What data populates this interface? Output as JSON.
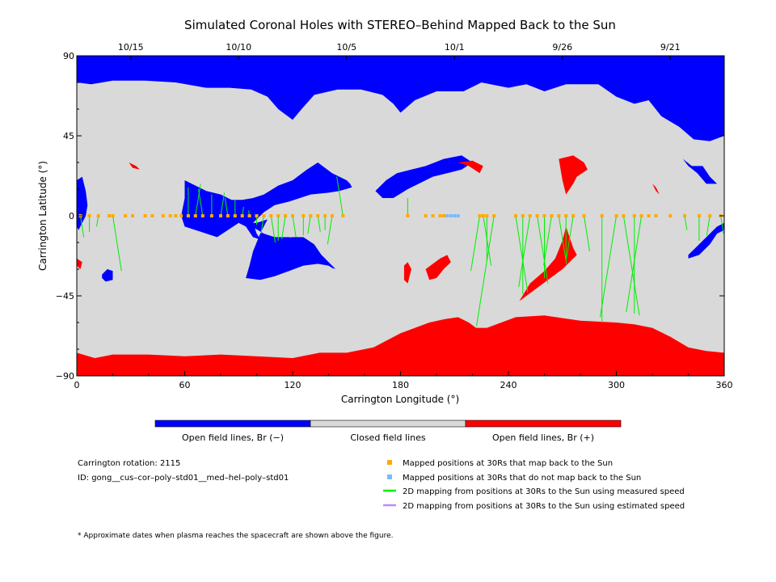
{
  "chart_data": {
    "type": "map",
    "title": "Simulated Coronal Holes with STEREO–Behind Mapped Back to the Sun",
    "xlabel": "Carrington Longitude (°)",
    "ylabel": "Carrington Latitude (°)",
    "xlim": [
      0,
      360
    ],
    "ylim": [
      -90,
      90
    ],
    "x_ticks": [
      "0",
      "60",
      "120",
      "180",
      "240",
      "300",
      "360"
    ],
    "y_ticks": [
      "90",
      "45",
      "0",
      "−45",
      "−90"
    ],
    "top_axis": {
      "dates": [
        "10/15",
        "10/10",
        "10/5",
        "10/1",
        "9/26",
        "9/21"
      ],
      "date_longitudes": [
        30,
        90,
        150,
        210,
        270,
        330
      ]
    },
    "colorbar": {
      "labels": [
        "Open field lines, Br (−)",
        "Closed field lines",
        "Open field lines, Br (+)"
      ],
      "colors": [
        "#0000ff",
        "#d9d9d9",
        "#ff0000"
      ]
    },
    "mapped_points_color": "#ffaa00",
    "unmapped_points_color": "#77bbff",
    "measured_line_color": "#00ee00",
    "estimated_line_color": "#bb88ff",
    "mapped_longitudes": [
      2,
      7,
      12,
      18,
      20,
      27,
      31,
      38,
      42,
      48,
      52,
      55,
      58,
      62,
      66,
      70,
      75,
      80,
      84,
      88,
      92,
      96,
      100,
      104,
      108,
      112,
      116,
      120,
      126,
      130,
      134,
      138,
      142,
      148,
      184,
      194,
      198,
      202,
      204,
      224,
      226,
      228,
      232,
      244,
      248,
      252,
      256,
      260,
      264,
      268,
      272,
      276,
      282,
      292,
      300,
      304,
      310,
      314,
      318,
      322,
      330,
      338,
      346,
      352,
      358
    ],
    "unmapped_longitudes": [
      206,
      208,
      210,
      212
    ],
    "connections": [
      [
        2,
        0,
        -12
      ],
      [
        7,
        0,
        -9
      ],
      [
        12,
        0,
        -6
      ],
      [
        20,
        0,
        -31
      ],
      [
        62,
        0,
        16
      ],
      [
        66,
        0,
        18
      ],
      [
        70,
        0,
        15
      ],
      [
        75,
        0,
        12
      ],
      [
        80,
        0,
        13
      ],
      [
        84,
        0,
        10
      ],
      [
        88,
        0,
        9
      ],
      [
        92,
        0,
        5
      ],
      [
        96,
        0,
        3
      ],
      [
        100,
        0,
        -5
      ],
      [
        104,
        0,
        -10
      ],
      [
        108,
        0,
        -15
      ],
      [
        112,
        0,
        -14
      ],
      [
        116,
        0,
        -13
      ],
      [
        120,
        0,
        -12
      ],
      [
        126,
        0,
        -11
      ],
      [
        130,
        0,
        -10
      ],
      [
        134,
        0,
        -9
      ],
      [
        138,
        0,
        -8
      ],
      [
        142,
        0,
        -16
      ],
      [
        148,
        0,
        22
      ],
      [
        184,
        0,
        10
      ],
      [
        224,
        0,
        -31
      ],
      [
        226,
        0,
        -28
      ],
      [
        228,
        0,
        -25
      ],
      [
        232,
        0,
        -62
      ],
      [
        244,
        0,
        -43
      ],
      [
        248,
        0,
        -44
      ],
      [
        252,
        0,
        -40
      ],
      [
        256,
        0,
        -38
      ],
      [
        260,
        0,
        -35
      ],
      [
        264,
        0,
        -28
      ],
      [
        268,
        0,
        -27
      ],
      [
        272,
        0,
        -25
      ],
      [
        276,
        0,
        -24
      ],
      [
        282,
        0,
        -20
      ],
      [
        292,
        0,
        -60
      ],
      [
        300,
        0,
        -57
      ],
      [
        304,
        0,
        -56
      ],
      [
        310,
        0,
        -55
      ],
      [
        314,
        0,
        -54
      ],
      [
        338,
        0,
        -8
      ],
      [
        346,
        0,
        -14
      ],
      [
        352,
        0,
        -11
      ],
      [
        358,
        0,
        -10
      ]
    ],
    "coronal_holes": [
      {
        "polarity": "negative",
        "lonlat": [
          [
            0,
            90
          ],
          [
            360,
            90
          ],
          [
            360,
            45
          ],
          [
            352,
            42
          ],
          [
            343,
            43
          ],
          [
            335,
            50
          ],
          [
            325,
            56
          ],
          [
            318,
            65
          ],
          [
            310,
            63
          ],
          [
            300,
            67
          ],
          [
            290,
            74
          ],
          [
            272,
            74
          ],
          [
            260,
            70
          ],
          [
            250,
            74
          ],
          [
            240,
            72
          ],
          [
            225,
            75
          ],
          [
            215,
            70
          ],
          [
            200,
            70
          ],
          [
            188,
            65
          ],
          [
            180,
            58
          ],
          [
            176,
            63
          ],
          [
            170,
            68
          ],
          [
            158,
            71
          ],
          [
            145,
            71
          ],
          [
            132,
            68
          ],
          [
            125,
            60
          ],
          [
            120,
            54
          ],
          [
            112,
            60
          ],
          [
            106,
            67
          ],
          [
            97,
            71
          ],
          [
            85,
            72
          ],
          [
            72,
            72
          ],
          [
            55,
            75
          ],
          [
            38,
            76
          ],
          [
            20,
            76
          ],
          [
            8,
            74
          ],
          [
            0,
            75
          ]
        ]
      },
      {
        "polarity": "negative",
        "lonlat": [
          [
            60,
            20
          ],
          [
            72,
            14
          ],
          [
            80,
            12
          ],
          [
            86,
            9
          ],
          [
            92,
            9
          ],
          [
            98,
            10
          ],
          [
            104,
            12
          ],
          [
            112,
            17
          ],
          [
            120,
            20
          ],
          [
            128,
            26
          ],
          [
            134,
            30
          ],
          [
            142,
            24
          ],
          [
            150,
            20
          ],
          [
            152,
            18
          ],
          [
            153,
            16
          ],
          [
            146,
            14
          ],
          [
            140,
            13
          ],
          [
            130,
            12
          ],
          [
            118,
            8
          ],
          [
            110,
            6
          ],
          [
            104,
            2
          ],
          [
            98,
            -4
          ],
          [
            100,
            -10
          ],
          [
            104,
            -16
          ],
          [
            112,
            -20
          ],
          [
            120,
            -22
          ],
          [
            126,
            -24
          ],
          [
            130,
            -26
          ],
          [
            136,
            -27
          ],
          [
            140,
            -28
          ],
          [
            144,
            -30
          ],
          [
            140,
            -26
          ],
          [
            136,
            -22
          ],
          [
            132,
            -16
          ],
          [
            126,
            -12
          ],
          [
            120,
            -12
          ],
          [
            112,
            -13
          ],
          [
            104,
            -14
          ],
          [
            98,
            -12
          ],
          [
            94,
            -6
          ],
          [
            90,
            -4
          ],
          [
            84,
            -8
          ],
          [
            78,
            -12
          ],
          [
            72,
            -10
          ],
          [
            66,
            -8
          ],
          [
            60,
            -6
          ],
          [
            58,
            0
          ],
          [
            60,
            10
          ]
        ]
      },
      {
        "polarity": "negative",
        "lonlat": [
          [
            94,
            -4
          ],
          [
            100,
            -4
          ],
          [
            106,
            -2
          ],
          [
            102,
            -10
          ],
          [
            98,
            -20
          ],
          [
            96,
            -28
          ],
          [
            94,
            -35
          ],
          [
            102,
            -36
          ],
          [
            110,
            -34
          ],
          [
            118,
            -31
          ],
          [
            126,
            -28
          ],
          [
            134,
            -27
          ],
          [
            140,
            -28
          ],
          [
            143,
            -30
          ],
          [
            138,
            -24
          ],
          [
            132,
            -18
          ],
          [
            126,
            -14
          ],
          [
            118,
            -12
          ],
          [
            110,
            -12
          ],
          [
            104,
            -10
          ]
        ]
      },
      {
        "polarity": "negative",
        "lonlat": [
          [
            166,
            14
          ],
          [
            172,
            20
          ],
          [
            178,
            24
          ],
          [
            186,
            26
          ],
          [
            194,
            28
          ],
          [
            204,
            32
          ],
          [
            214,
            34
          ],
          [
            220,
            30
          ],
          [
            214,
            26
          ],
          [
            206,
            24
          ],
          [
            198,
            22
          ],
          [
            190,
            18
          ],
          [
            184,
            15
          ],
          [
            176,
            10
          ],
          [
            170,
            10
          ]
        ]
      },
      {
        "polarity": "negative",
        "lonlat": [
          [
            0,
            20
          ],
          [
            3,
            22
          ],
          [
            5,
            14
          ],
          [
            6,
            6
          ],
          [
            5,
            0
          ],
          [
            3,
            -4
          ],
          [
            1,
            -8
          ],
          [
            0,
            -6
          ]
        ]
      },
      {
        "polarity": "negative",
        "lonlat": [
          [
            14,
            -33
          ],
          [
            17,
            -30
          ],
          [
            20,
            -31
          ],
          [
            20,
            -36
          ],
          [
            16,
            -37
          ],
          [
            14,
            -35
          ]
        ]
      },
      {
        "polarity": "negative",
        "lonlat": [
          [
            340,
            -24
          ],
          [
            346,
            -22
          ],
          [
            352,
            -16
          ],
          [
            356,
            -10
          ],
          [
            360,
            -8
          ],
          [
            360,
            -4
          ],
          [
            356,
            -6
          ],
          [
            350,
            -12
          ],
          [
            344,
            -18
          ],
          [
            340,
            -22
          ]
        ]
      },
      {
        "polarity": "negative",
        "lonlat": [
          [
            337,
            32
          ],
          [
            342,
            28
          ],
          [
            348,
            28
          ],
          [
            352,
            22
          ],
          [
            356,
            18
          ],
          [
            350,
            18
          ],
          [
            345,
            24
          ],
          [
            340,
            28
          ]
        ]
      },
      {
        "polarity": "positive",
        "lonlat": [
          [
            0,
            -77
          ],
          [
            10,
            -80
          ],
          [
            20,
            -78
          ],
          [
            40,
            -78
          ],
          [
            60,
            -79
          ],
          [
            80,
            -78
          ],
          [
            100,
            -79
          ],
          [
            120,
            -80
          ],
          [
            135,
            -77
          ],
          [
            150,
            -77
          ],
          [
            165,
            -74
          ],
          [
            180,
            -66
          ],
          [
            188,
            -63
          ],
          [
            196,
            -60
          ],
          [
            205,
            -58
          ],
          [
            212,
            -57
          ],
          [
            218,
            -60
          ],
          [
            222,
            -63
          ],
          [
            228,
            -63
          ],
          [
            236,
            -60
          ],
          [
            244,
            -57
          ],
          [
            260,
            -56
          ],
          [
            280,
            -59
          ],
          [
            300,
            -60
          ],
          [
            310,
            -61
          ],
          [
            320,
            -63
          ],
          [
            330,
            -68
          ],
          [
            340,
            -74
          ],
          [
            350,
            -76
          ],
          [
            360,
            -77
          ],
          [
            360,
            -90
          ],
          [
            0,
            -90
          ]
        ]
      },
      {
        "polarity": "positive",
        "lonlat": [
          [
            246,
            -48
          ],
          [
            252,
            -38
          ],
          [
            260,
            -31
          ],
          [
            266,
            -24
          ],
          [
            270,
            -14
          ],
          [
            272,
            -6
          ],
          [
            274,
            -12
          ],
          [
            276,
            -18
          ],
          [
            278,
            -22
          ],
          [
            270,
            -30
          ],
          [
            262,
            -36
          ],
          [
            254,
            -42
          ]
        ]
      },
      {
        "polarity": "positive",
        "lonlat": [
          [
            268,
            32
          ],
          [
            276,
            34
          ],
          [
            282,
            30
          ],
          [
            284,
            26
          ],
          [
            278,
            22
          ],
          [
            276,
            18
          ],
          [
            272,
            12
          ],
          [
            270,
            20
          ]
        ]
      },
      {
        "polarity": "positive",
        "lonlat": [
          [
            194,
            -30
          ],
          [
            198,
            -27
          ],
          [
            202,
            -24
          ],
          [
            206,
            -22
          ],
          [
            208,
            -26
          ],
          [
            204,
            -30
          ],
          [
            200,
            -35
          ],
          [
            196,
            -36
          ]
        ]
      },
      {
        "polarity": "positive",
        "lonlat": [
          [
            182,
            -28
          ],
          [
            184,
            -26
          ],
          [
            186,
            -30
          ],
          [
            184,
            -38
          ],
          [
            182,
            -36
          ]
        ]
      },
      {
        "polarity": "positive",
        "lonlat": [
          [
            212,
            30
          ],
          [
            220,
            31
          ],
          [
            226,
            28
          ],
          [
            224,
            24
          ],
          [
            218,
            28
          ]
        ]
      },
      {
        "polarity": "positive",
        "lonlat": [
          [
            29,
            30
          ],
          [
            33,
            28
          ],
          [
            35,
            26
          ],
          [
            31,
            27
          ]
        ]
      },
      {
        "polarity": "positive",
        "lonlat": [
          [
            320,
            18
          ],
          [
            322,
            14
          ],
          [
            324,
            12
          ],
          [
            322,
            16
          ]
        ]
      },
      {
        "polarity": "positive",
        "lonlat": [
          [
            0,
            -24
          ],
          [
            3,
            -26
          ],
          [
            2,
            -30
          ],
          [
            0,
            -28
          ]
        ]
      }
    ]
  },
  "legend": {
    "carrington_rotation": "Carrington rotation: 2115",
    "id": "ID: gong__cus–cor–poly–std01__med–hel–poly–std01",
    "mapped": "Mapped positions at 30Rs that map back to the Sun",
    "not_mapped": "Mapped positions at 30Rs that do not map back to the Sun",
    "measured": "2D mapping from positions at 30Rs to the Sun using measured speed",
    "estimated": "2D mapping from positions at 30Rs to the Sun using estimated speed"
  },
  "footnote": "* Approximate dates when plasma reaches the spacecraft are shown above the figure."
}
